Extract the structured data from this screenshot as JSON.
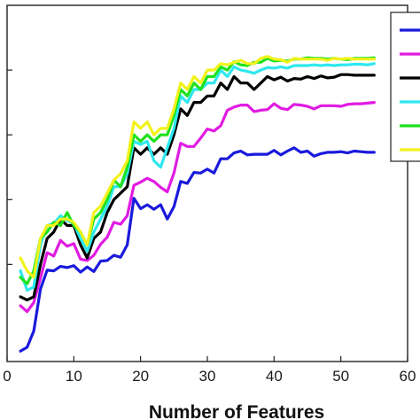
{
  "chart_data": {
    "type": "line",
    "title": "",
    "xlabel": "Number of Features",
    "ylabel": "",
    "xlim": [
      0,
      60
    ],
    "ylim": [
      0.45,
      1.0
    ],
    "xticks": [
      0,
      10,
      20,
      30,
      40,
      50,
      60
    ],
    "x_tick_labels": [
      "0",
      "10",
      "20",
      "30",
      "40",
      "50",
      "60"
    ],
    "yticks": [
      0.6,
      0.7,
      0.8,
      0.9
    ],
    "y_tick_labels": [
      "",
      "",
      "",
      ""
    ],
    "grid": false,
    "legend_placement": "top-right",
    "x": [
      2,
      3,
      4,
      5,
      6,
      7,
      8,
      9,
      10,
      11,
      12,
      13,
      14,
      15,
      16,
      17,
      18,
      19,
      20,
      21,
      22,
      23,
      24,
      25,
      26,
      27,
      28,
      29,
      30,
      31,
      32,
      33,
      34,
      35,
      36,
      37,
      38,
      39,
      40,
      41,
      42,
      43,
      44,
      45,
      46,
      47,
      48,
      49,
      50,
      51,
      52,
      53,
      54,
      55
    ],
    "series": [
      {
        "color": "#1a1adc",
        "values": [
          0.466,
          0.472,
          0.497,
          0.562,
          0.591,
          0.59,
          0.597,
          0.595,
          0.598,
          0.588,
          0.596,
          0.589,
          0.605,
          0.606,
          0.614,
          0.611,
          0.63,
          0.702,
          0.686,
          0.692,
          0.685,
          0.692,
          0.67,
          0.689,
          0.728,
          0.725,
          0.742,
          0.741,
          0.747,
          0.741,
          0.763,
          0.763,
          0.772,
          0.775,
          0.769,
          0.77,
          0.77,
          0.77,
          0.776,
          0.769,
          0.775,
          0.78,
          0.773,
          0.775,
          0.767,
          0.771,
          0.773,
          0.773,
          0.774,
          0.772,
          0.775,
          0.774,
          0.773,
          0.773
        ]
      },
      {
        "color": "#e11be1",
        "values": [
          0.536,
          0.527,
          0.541,
          0.579,
          0.618,
          0.613,
          0.637,
          0.628,
          0.632,
          0.608,
          0.606,
          0.614,
          0.631,
          0.642,
          0.665,
          0.662,
          0.675,
          0.722,
          0.727,
          0.733,
          0.728,
          0.719,
          0.712,
          0.741,
          0.787,
          0.782,
          0.782,
          0.795,
          0.809,
          0.806,
          0.814,
          0.838,
          0.843,
          0.846,
          0.846,
          0.836,
          0.838,
          0.839,
          0.848,
          0.841,
          0.839,
          0.847,
          0.846,
          0.844,
          0.84,
          0.845,
          0.845,
          0.845,
          0.844,
          0.847,
          0.848,
          0.848,
          0.849,
          0.85
        ]
      },
      {
        "color": "#000000",
        "values": [
          0.55,
          0.545,
          0.55,
          0.6,
          0.64,
          0.65,
          0.67,
          0.66,
          0.66,
          0.63,
          0.61,
          0.64,
          0.65,
          0.68,
          0.7,
          0.71,
          0.72,
          0.78,
          0.77,
          0.78,
          0.77,
          0.78,
          0.77,
          0.8,
          0.84,
          0.83,
          0.85,
          0.85,
          0.86,
          0.86,
          0.88,
          0.87,
          0.89,
          0.88,
          0.88,
          0.87,
          0.88,
          0.89,
          0.885,
          0.889,
          0.883,
          0.887,
          0.886,
          0.89,
          0.887,
          0.891,
          0.888,
          0.889,
          0.893,
          0.893,
          0.892,
          0.892,
          0.892,
          0.892
        ]
      },
      {
        "color": "#2ee8ee",
        "values": [
          0.59,
          0.56,
          0.565,
          0.63,
          0.66,
          0.663,
          0.675,
          0.668,
          0.663,
          0.64,
          0.62,
          0.65,
          0.67,
          0.69,
          0.72,
          0.72,
          0.74,
          0.79,
          0.785,
          0.79,
          0.76,
          0.75,
          0.78,
          0.81,
          0.86,
          0.85,
          0.87,
          0.87,
          0.88,
          0.88,
          0.9,
          0.89,
          0.905,
          0.9,
          0.898,
          0.895,
          0.9,
          0.904,
          0.903,
          0.905,
          0.903,
          0.907,
          0.907,
          0.907,
          0.908,
          0.907,
          0.908,
          0.907,
          0.908,
          0.908,
          0.909,
          0.909,
          0.908,
          0.91
        ]
      },
      {
        "color": "#1ee21e",
        "values": [
          0.58,
          0.57,
          0.59,
          0.64,
          0.65,
          0.665,
          0.66,
          0.68,
          0.66,
          0.65,
          0.63,
          0.67,
          0.68,
          0.7,
          0.73,
          0.72,
          0.75,
          0.8,
          0.79,
          0.8,
          0.79,
          0.8,
          0.8,
          0.83,
          0.87,
          0.86,
          0.88,
          0.87,
          0.89,
          0.89,
          0.905,
          0.9,
          0.913,
          0.908,
          0.907,
          0.912,
          0.912,
          0.918,
          0.914,
          0.915,
          0.914,
          0.917,
          0.917,
          0.919,
          0.918,
          0.918,
          0.917,
          0.918,
          0.917,
          0.916,
          0.918,
          0.918,
          0.918,
          0.919
        ]
      },
      {
        "color": "#f2f21a",
        "values": [
          0.61,
          0.59,
          0.58,
          0.64,
          0.66,
          0.66,
          0.67,
          0.67,
          0.665,
          0.65,
          0.63,
          0.68,
          0.69,
          0.71,
          0.73,
          0.74,
          0.76,
          0.82,
          0.81,
          0.82,
          0.8,
          0.81,
          0.81,
          0.84,
          0.88,
          0.87,
          0.89,
          0.88,
          0.9,
          0.9,
          0.91,
          0.908,
          0.912,
          0.915,
          0.91,
          0.91,
          0.918,
          0.921,
          0.917,
          0.916,
          0.912,
          0.918,
          0.917,
          0.917,
          0.917,
          0.917,
          0.915,
          0.918,
          0.917,
          0.918,
          0.917,
          0.917,
          0.917,
          0.917
        ]
      }
    ]
  }
}
